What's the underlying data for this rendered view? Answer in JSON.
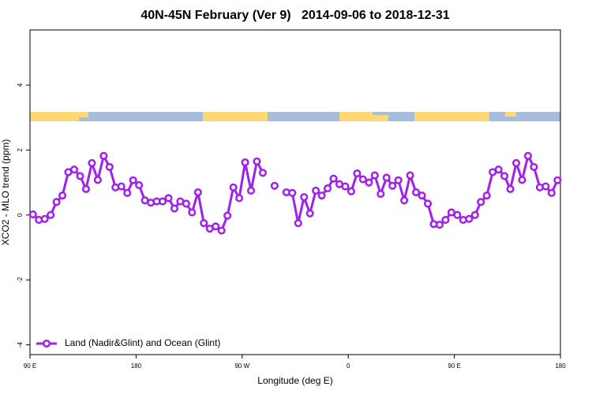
{
  "chart_data": {
    "type": "line",
    "title": "40N-45N February (Ver 9)   2014-09-06 to 2018-12-31",
    "x_label": "Longitude (deg E)",
    "y_label": "XCO2 - MLO trend (ppm)",
    "x": [
      92.5,
      97.5,
      102.5,
      107.5,
      112.5,
      117.5,
      122.5,
      127.5,
      132.5,
      137.5,
      142.5,
      147.5,
      152.5,
      157.5,
      162.5,
      167.5,
      172.5,
      177.5,
      182.5,
      187.5,
      192.5,
      197.5,
      202.5,
      207.5,
      212.5,
      217.5,
      222.5,
      227.5,
      232.5,
      237.5,
      242.5,
      247.5,
      252.5,
      257.5,
      262.5,
      267.5,
      272.5,
      277.5,
      282.5,
      287.5,
      292.5,
      297.5,
      302.5,
      307.5,
      312.5,
      317.5,
      322.5,
      327.5,
      332.5,
      337.5,
      342.5,
      347.5,
      352.5,
      357.5,
      362.5,
      367.5,
      372.5,
      377.5,
      382.5,
      387.5,
      392.5,
      397.5,
      402.5,
      407.5,
      412.5,
      417.5,
      422.5,
      427.5,
      432.5,
      437.5,
      442.5,
      447.5,
      452.5,
      457.5,
      462.5,
      467.5,
      472.5,
      477.5,
      482.5,
      487.5,
      492.5,
      497.5,
      502.5,
      507.5,
      512.5,
      517.5,
      522.5,
      527.5,
      532.5,
      537.5
    ],
    "series": [
      {
        "name": "Land (Nadir&Glint) and Ocean (Glint)",
        "color": "#a020f0",
        "values": [
          0.02,
          -0.15,
          -0.12,
          0,
          0.4,
          0.6,
          1.32,
          1.4,
          1.2,
          0.8,
          1.6,
          1.08,
          1.82,
          1.48,
          0.85,
          0.88,
          0.68,
          1.07,
          0.92,
          0.45,
          0.38,
          0.42,
          0.42,
          0.52,
          0.2,
          0.42,
          0.35,
          0.08,
          0.7,
          -0.25,
          -0.42,
          -0.35,
          -0.48,
          -0.02,
          0.85,
          0.52,
          1.62,
          0.75,
          1.65,
          1.3,
          null,
          0.9,
          null,
          0.7,
          0.68,
          -0.25,
          0.55,
          0.05,
          0.75,
          0.6,
          0.82,
          1.12,
          0.95,
          0.88,
          0.73,
          1.28,
          1.1,
          1.0,
          1.22,
          0.65,
          1.15,
          0.9,
          1.07,
          0.45,
          1.22,
          0.7,
          0.6,
          0.35,
          -0.28,
          -0.3,
          -0.15,
          0.08,
          0,
          -0.15,
          -0.12,
          0,
          0.4,
          0.6,
          1.32,
          1.4,
          1.2,
          0.8,
          1.6,
          1.08,
          1.82,
          1.48,
          0.85,
          0.88,
          0.68,
          1.07
        ]
      }
    ],
    "xlim": [
      90,
      540
    ],
    "xticks": [
      {
        "value": 90,
        "label": "90 E"
      },
      180,
      {
        "value": 270,
        "label": "90 W"
      },
      {
        "value": 360,
        "label": "0"
      },
      {
        "value": 450,
        "label": "90 E"
      },
      {
        "value": 540,
        "label": "180"
      }
    ],
    "ylim": [
      -4.3,
      5.7
    ],
    "yticks": [
      -4,
      -2,
      0,
      2,
      4
    ],
    "legend": "bottomleft"
  }
}
